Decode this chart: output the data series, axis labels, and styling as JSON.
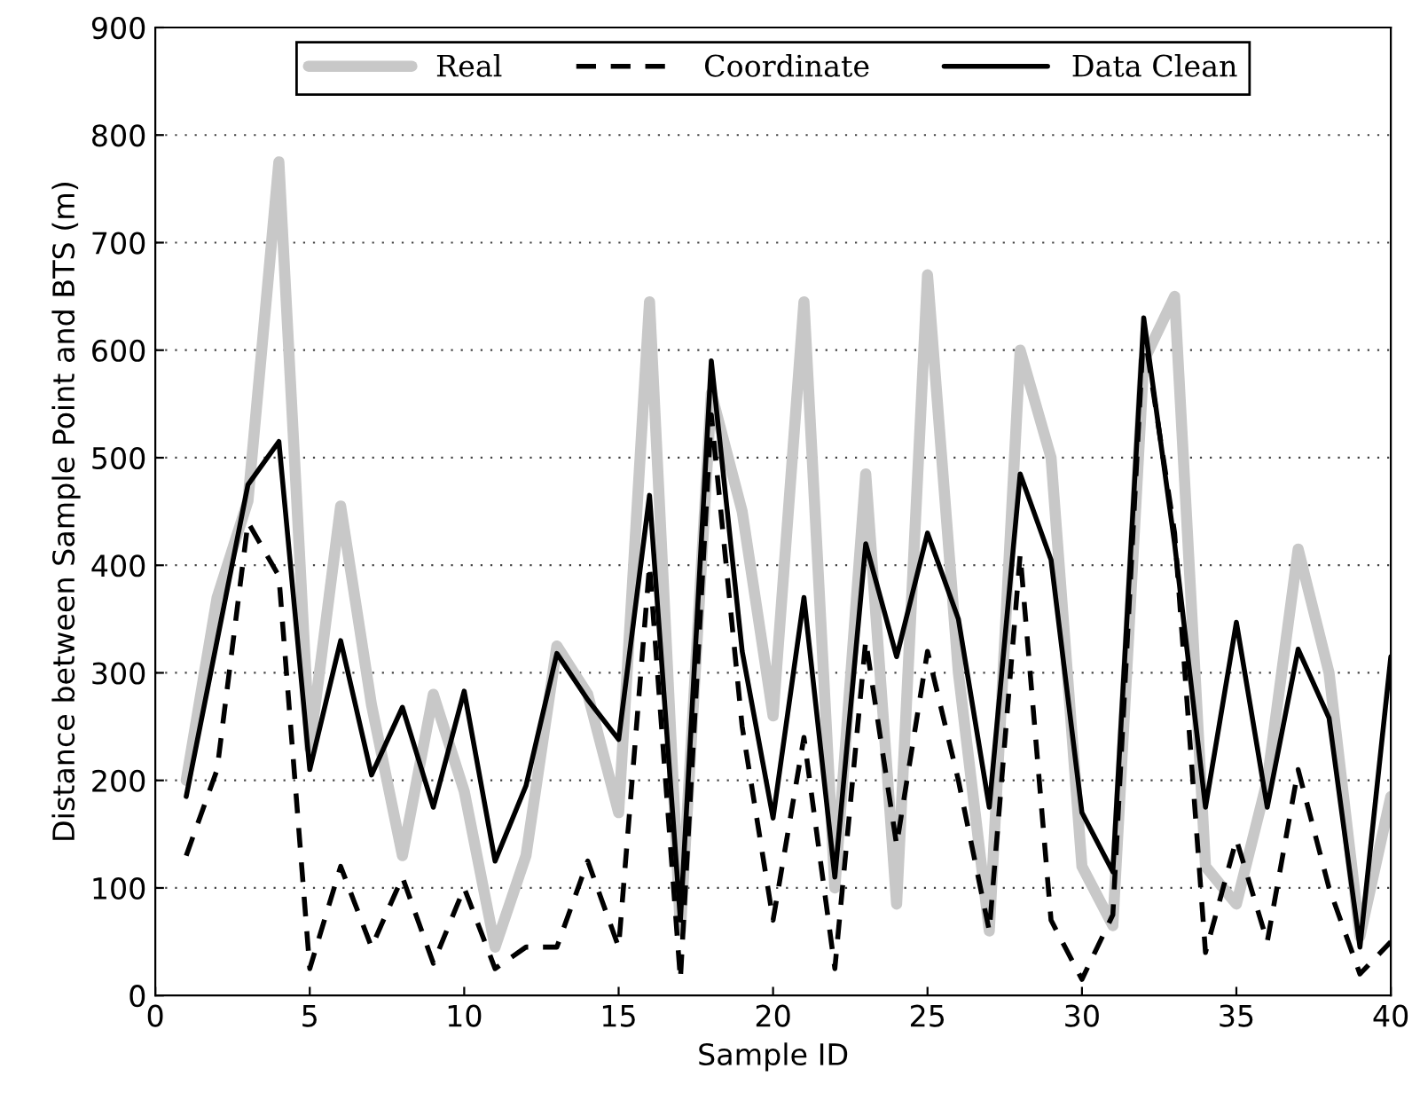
{
  "chart_data": {
    "type": "line",
    "xlabel": "Sample ID",
    "ylabel": "Distance between Sample Point and BTS (m)",
    "x": [
      1,
      2,
      3,
      4,
      5,
      6,
      7,
      8,
      9,
      10,
      11,
      12,
      13,
      14,
      15,
      16,
      17,
      18,
      19,
      20,
      21,
      22,
      23,
      24,
      25,
      26,
      27,
      28,
      29,
      30,
      31,
      32,
      33,
      34,
      35,
      36,
      37,
      38,
      39,
      40
    ],
    "series": [
      {
        "name": "Real",
        "color": "#c8c8c8",
        "line_style": "solid",
        "values": [
          200,
          370,
          460,
          775,
          230,
          455,
          270,
          130,
          280,
          190,
          45,
          130,
          325,
          280,
          170,
          645,
          60,
          560,
          450,
          260,
          645,
          100,
          485,
          85,
          670,
          300,
          60,
          600,
          500,
          120,
          65,
          590,
          650,
          120,
          85,
          200,
          415,
          300,
          55,
          185
        ]
      },
      {
        "name": "Coordinate",
        "color": "#000000",
        "line_style": "dashed",
        "values": [
          130,
          210,
          440,
          390,
          25,
          120,
          45,
          110,
          30,
          100,
          25,
          45,
          45,
          125,
          45,
          400,
          15,
          540,
          250,
          70,
          240,
          25,
          330,
          140,
          320,
          200,
          60,
          410,
          70,
          15,
          75,
          620,
          430,
          40,
          145,
          50,
          210,
          100,
          20,
          50
        ]
      },
      {
        "name": "Data Clean",
        "color": "#000000",
        "line_style": "solid",
        "values": [
          185,
          330,
          475,
          515,
          210,
          330,
          205,
          268,
          175,
          283,
          125,
          195,
          318,
          275,
          238,
          465,
          70,
          590,
          320,
          165,
          370,
          110,
          420,
          315,
          430,
          350,
          175,
          485,
          405,
          170,
          115,
          630,
          420,
          175,
          347,
          175,
          322,
          258,
          45,
          315
        ]
      }
    ],
    "xlim": [
      0,
      40
    ],
    "xticks": [
      0,
      5,
      10,
      15,
      20,
      25,
      30,
      35,
      40
    ],
    "ylim": [
      0,
      900
    ],
    "yticks": [
      0,
      100,
      200,
      300,
      400,
      500,
      600,
      700,
      800,
      900
    ],
    "grid": "y",
    "legend": "top",
    "marker": "none"
  }
}
